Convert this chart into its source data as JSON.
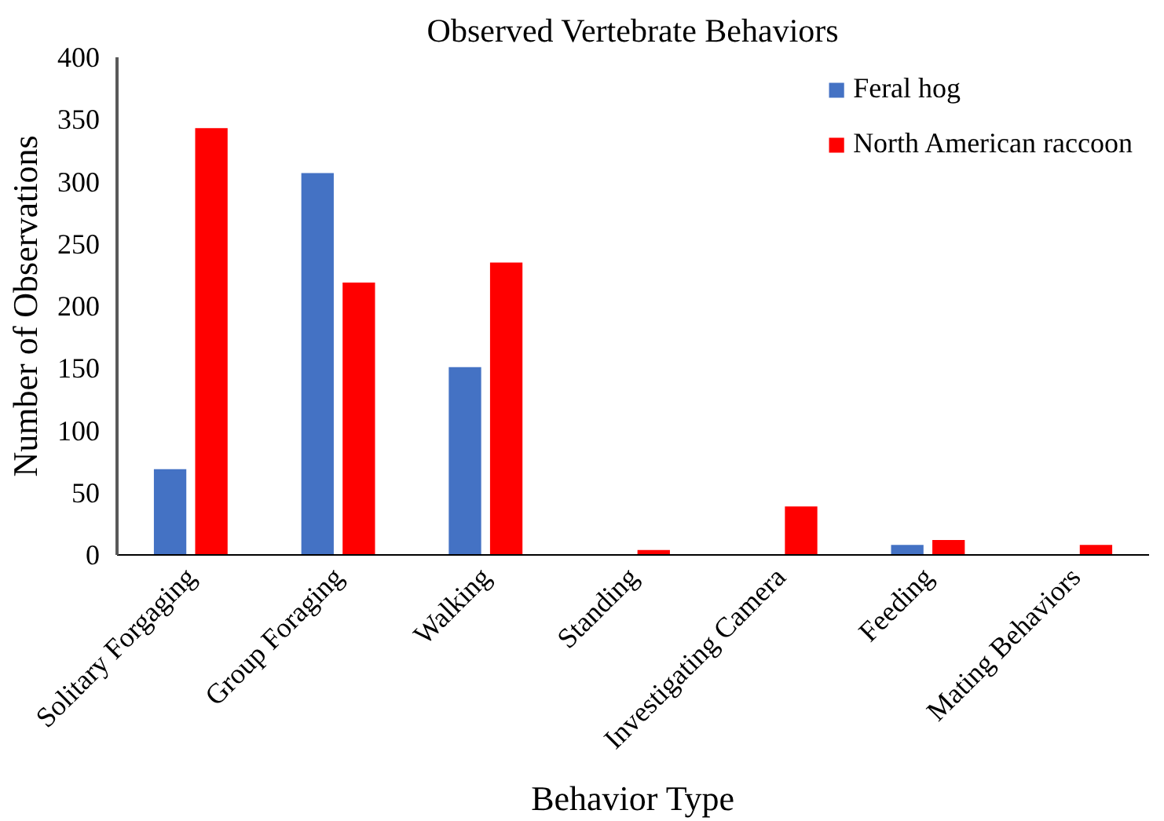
{
  "chart_data": {
    "type": "bar",
    "title": "Observed Vertebrate Behaviors",
    "xlabel": "Behavior Type",
    "ylabel": "Number of Observations",
    "categories": [
      "Solitary Forgaging",
      "Group Foraging",
      "Walking",
      "Standing",
      "Investigating Camera",
      "Feeding",
      "Mating Behaviors"
    ],
    "series": [
      {
        "name": "Feral hog",
        "color": "#4472c4",
        "values": [
          69,
          307,
          151,
          0,
          0,
          8,
          0
        ]
      },
      {
        "name": "North American raccoon",
        "color": "#ff0000",
        "values": [
          343,
          219,
          235,
          4,
          39,
          12,
          8
        ]
      }
    ],
    "ylim": [
      0,
      400
    ],
    "yticks": [
      0,
      50,
      100,
      150,
      200,
      250,
      300,
      350,
      400
    ],
    "grid": false,
    "legend": "top right"
  }
}
